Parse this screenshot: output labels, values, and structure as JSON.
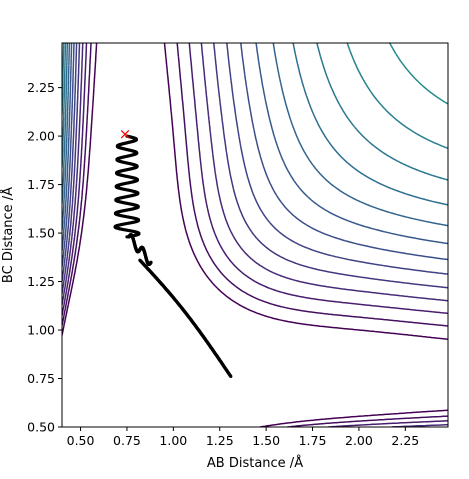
{
  "chart_data": {
    "type": "contour",
    "title": "",
    "xlabel": "AB Distance /Å",
    "ylabel": "BC Distance /Å",
    "xlim": [
      0.4,
      2.48
    ],
    "ylim": [
      0.5,
      2.48
    ],
    "xticks": [
      "0.50",
      "0.75",
      "1.00",
      "1.25",
      "1.50",
      "1.75",
      "2.00",
      "2.25"
    ],
    "xtick_values": [
      0.5,
      0.75,
      1.0,
      1.25,
      1.5,
      1.75,
      2.0,
      2.25
    ],
    "yticks": [
      "0.50",
      "0.75",
      "1.00",
      "1.25",
      "1.50",
      "1.75",
      "2.00",
      "2.25"
    ],
    "ytick_values": [
      0.5,
      0.75,
      1.0,
      1.25,
      1.5,
      1.75,
      2.0,
      2.25
    ],
    "grid": false,
    "colormap": "viridis",
    "contour_levels": 26,
    "surface": {
      "type": "LEPS-like potential energy surface",
      "valley_AB_min": 0.74,
      "valley_BC_min": 0.74
    },
    "start_marker": {
      "label": "×",
      "x": 0.74,
      "y": 2.01,
      "color": "#ff0000"
    },
    "trajectory": {
      "color": "#000000",
      "description": "Reactive trajectory: oscillating in AB at large BC, then passing the saddle and exiting toward large AB at BC ≈ 0.75",
      "end": {
        "x": 1.31,
        "y": 0.76
      }
    }
  }
}
